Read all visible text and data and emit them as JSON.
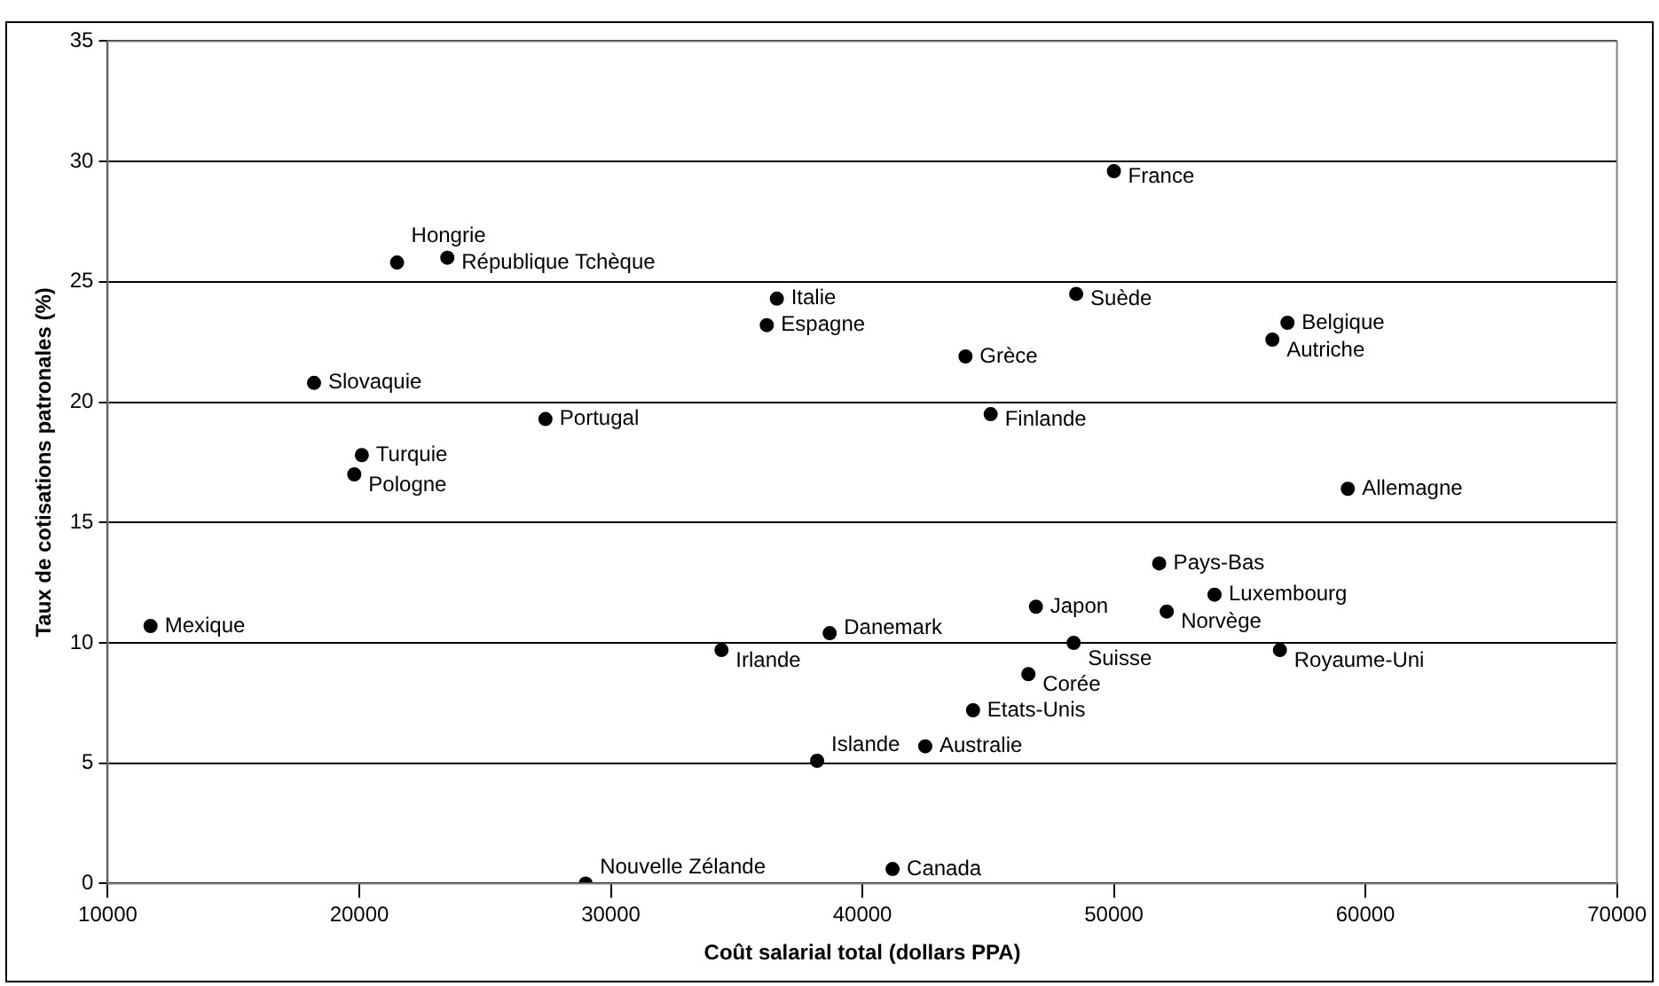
{
  "chart_data": {
    "type": "scatter",
    "xlabel": "Coût salarial total (dollars PPA)",
    "ylabel": "Taux de cotisations patronales (%)",
    "xlim": [
      10000,
      70000
    ],
    "xticks": [
      10000,
      20000,
      30000,
      40000,
      50000,
      60000,
      70000
    ],
    "ylim": [
      0,
      35
    ],
    "yticks": [
      0,
      5,
      10,
      15,
      20,
      25,
      30,
      35
    ],
    "grid": "y",
    "marker": "circle",
    "color": "#000000",
    "x": [
      11700,
      21500,
      23500,
      18200,
      20100,
      19800,
      27400,
      36600,
      36200,
      50000,
      48500,
      44100,
      45100,
      56900,
      56300,
      59300,
      51800,
      54000,
      46900,
      52100,
      38700,
      34400,
      48400,
      56600,
      46600,
      44400,
      42500,
      38200,
      41200,
      29000
    ],
    "values": [
      10.7,
      25.8,
      26.0,
      20.8,
      17.8,
      17.0,
      19.3,
      24.3,
      23.2,
      29.6,
      24.5,
      21.9,
      19.5,
      23.3,
      22.6,
      16.4,
      13.3,
      12.0,
      11.5,
      11.3,
      10.4,
      9.7,
      10.0,
      9.7,
      8.7,
      7.2,
      5.7,
      5.1,
      0.6,
      0.0
    ],
    "annotations": [
      {
        "text": "Mexique",
        "x": 11700,
        "y": 10.7
      },
      {
        "text": "Hongrie",
        "x": 21500,
        "y": 25.8
      },
      {
        "text": "République Tchèque",
        "x": 23500,
        "y": 26.0
      },
      {
        "text": "Slovaquie",
        "x": 18200,
        "y": 20.8
      },
      {
        "text": "Turquie",
        "x": 20100,
        "y": 17.8
      },
      {
        "text": "Pologne",
        "x": 19800,
        "y": 17.0
      },
      {
        "text": "Portugal",
        "x": 27400,
        "y": 19.3
      },
      {
        "text": "Italie",
        "x": 36600,
        "y": 24.3
      },
      {
        "text": "Espagne",
        "x": 36200,
        "y": 23.2
      },
      {
        "text": "France",
        "x": 50000,
        "y": 29.6
      },
      {
        "text": "Suède",
        "x": 48500,
        "y": 24.5
      },
      {
        "text": "Grèce",
        "x": 44100,
        "y": 21.9
      },
      {
        "text": "Finlande",
        "x": 45100,
        "y": 19.5
      },
      {
        "text": "Belgique",
        "x": 56900,
        "y": 23.3
      },
      {
        "text": "Autriche",
        "x": 56300,
        "y": 22.6
      },
      {
        "text": "Allemagne",
        "x": 59300,
        "y": 16.4
      },
      {
        "text": "Pays-Bas",
        "x": 51800,
        "y": 13.3
      },
      {
        "text": "Luxembourg",
        "x": 54000,
        "y": 12.0
      },
      {
        "text": "Japon",
        "x": 46900,
        "y": 11.5
      },
      {
        "text": "Norvège",
        "x": 52100,
        "y": 11.3
      },
      {
        "text": "Danemark",
        "x": 38700,
        "y": 10.4
      },
      {
        "text": "Irlande",
        "x": 34400,
        "y": 9.7
      },
      {
        "text": "Suisse",
        "x": 48400,
        "y": 10.0
      },
      {
        "text": "Royaume-Uni",
        "x": 56600,
        "y": 9.7
      },
      {
        "text": "Corée",
        "x": 46600,
        "y": 8.7
      },
      {
        "text": "Etats-Unis",
        "x": 44400,
        "y": 7.2
      },
      {
        "text": "Australie",
        "x": 42500,
        "y": 5.7
      },
      {
        "text": "Islande",
        "x": 38200,
        "y": 5.1
      },
      {
        "text": "Canada",
        "x": 41200,
        "y": 0.6
      },
      {
        "text": "Nouvelle Zélande",
        "x": 29000,
        "y": 0.0
      }
    ]
  }
}
